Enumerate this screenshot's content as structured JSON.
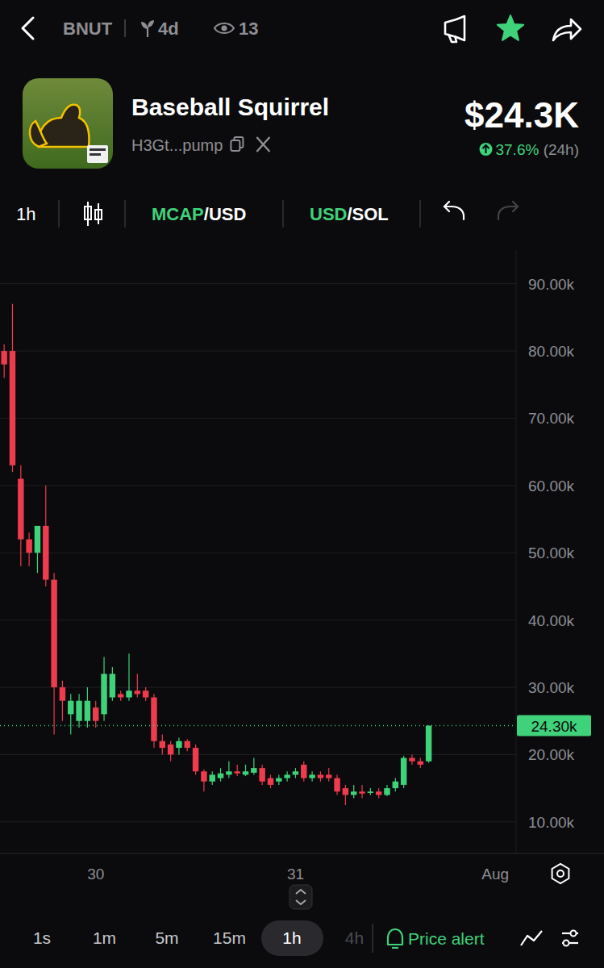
{
  "header": {
    "symbol": "BNUT",
    "age": "4d",
    "views": "13",
    "name": "Baseball Squirrel",
    "address": "H3Gt...pump",
    "market_cap": "$24.3K",
    "change": "37.6%",
    "change_period": "(24h)"
  },
  "toolbar": {
    "interval": "1h",
    "mcap_toggle": [
      "MCAP",
      "/USD"
    ],
    "currency_toggle": [
      "USD",
      "/SOL"
    ]
  },
  "footer": {
    "intervals": [
      "1s",
      "1m",
      "5m",
      "15m",
      "1h",
      "4h"
    ],
    "selected": 4,
    "price_alert": "Price alert"
  },
  "chart_data": {
    "type": "candlestick",
    "categories": [
      null,
      null,
      null,
      null,
      null,
      null,
      null,
      null,
      null,
      null,
      null,
      "30",
      null,
      null,
      null,
      null,
      null,
      null,
      null,
      null,
      null,
      null,
      null,
      null,
      null,
      null,
      null,
      null,
      null,
      null,
      null,
      null,
      null,
      null,
      null,
      "31",
      null,
      null,
      null,
      null,
      null,
      null,
      null,
      null,
      null,
      null,
      null,
      null,
      null,
      null,
      null,
      null,
      null,
      null,
      null,
      null,
      null,
      null,
      null,
      "Aug",
      null,
      null
    ],
    "open": [
      80000,
      80000,
      61000,
      52000,
      50000,
      54000,
      46000,
      30000,
      26000,
      25000,
      25000,
      27000,
      26000,
      28500,
      29000,
      28500,
      29500,
      29500,
      28500,
      22000,
      21500,
      21000,
      22000,
      21000,
      17500,
      16000,
      16500,
      17000,
      17500,
      17000,
      17300,
      18000,
      16500,
      16000,
      16500,
      17000,
      18500,
      16500,
      17000,
      17000,
      16500,
      15000,
      14000,
      14500,
      14300,
      14500,
      14000,
      15000,
      15500,
      19500,
      19000,
      19000,
      null,
      null,
      null,
      null,
      null,
      null,
      null,
      null,
      null,
      null
    ],
    "high": [
      81000,
      87000,
      63000,
      53000,
      54000,
      60000,
      47000,
      31000,
      29000,
      29000,
      30000,
      28000,
      34500,
      33000,
      29500,
      35000,
      32000,
      30000,
      29000,
      23000,
      22000,
      22500,
      22300,
      21500,
      17800,
      17500,
      18000,
      19000,
      18500,
      18500,
      19500,
      18500,
      17000,
      17000,
      17500,
      18000,
      19000,
      17500,
      17500,
      18000,
      17000,
      15500,
      15500,
      15500,
      15000,
      15000,
      15500,
      16500,
      19800,
      20000,
      19500,
      24300,
      null,
      null,
      null,
      null,
      null,
      null,
      null,
      null,
      null,
      null
    ],
    "low": [
      76000,
      62000,
      48000,
      48000,
      47000,
      45000,
      23000,
      25000,
      23000,
      24000,
      24000,
      24000,
      25000,
      28000,
      28000,
      28000,
      28500,
      28000,
      21000,
      20000,
      19000,
      20000,
      20500,
      17000,
      14500,
      15500,
      16000,
      16500,
      16800,
      16800,
      17000,
      15500,
      15000,
      15500,
      16000,
      16500,
      16000,
      16000,
      16000,
      16000,
      14000,
      12500,
      13500,
      13500,
      14000,
      13500,
      13800,
      14500,
      15000,
      18500,
      18000,
      18800,
      null,
      null,
      null,
      null,
      null,
      null,
      null,
      null,
      null,
      null
    ],
    "close": [
      78000,
      63000,
      52000,
      50000,
      54000,
      46000,
      30000,
      28000,
      28000,
      28000,
      28000,
      25000,
      32000,
      32000,
      28500,
      29500,
      29000,
      28500,
      22000,
      21000,
      20000,
      22000,
      21000,
      17500,
      16000,
      17000,
      17200,
      17500,
      17200,
      17500,
      18000,
      16000,
      15500,
      16500,
      17000,
      17500,
      16500,
      17000,
      16500,
      16500,
      14500,
      14000,
      14500,
      14200,
      14500,
      14000,
      15000,
      16000,
      19500,
      19000,
      18500,
      24300,
      null,
      null,
      null,
      null,
      null,
      null,
      null,
      null,
      null,
      null
    ],
    "ylim": [
      5300,
      95000
    ],
    "yticks": [
      {
        "value": 10000,
        "label": "10.00k"
      },
      {
        "value": 20000,
        "label": "20.00k"
      },
      {
        "value": 30000,
        "label": "30.00k"
      },
      {
        "value": 40000,
        "label": "40.00k"
      },
      {
        "value": 50000,
        "label": "50.00k"
      },
      {
        "value": 60000,
        "label": "60.00k"
      },
      {
        "value": 70000,
        "label": "70.00k"
      },
      {
        "value": 80000,
        "label": "80.00k"
      },
      {
        "value": 90000,
        "label": "90.00k"
      }
    ],
    "grid": true,
    "annotations": [
      {
        "value": 24300,
        "label": "24.30k"
      }
    ]
  }
}
